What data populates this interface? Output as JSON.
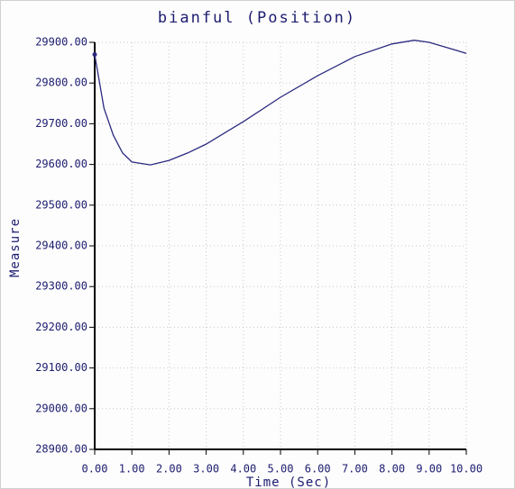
{
  "chart_data": {
    "type": "line",
    "title": "bianful (Position)",
    "x_label": "Time (Sec)",
    "y_label": "Measure",
    "x": [
      0,
      0.25,
      0.5,
      0.75,
      1,
      1.5,
      2,
      2.5,
      3,
      4,
      5,
      6,
      7,
      8,
      8.6,
      9,
      10
    ],
    "series": [
      {
        "name": "Position",
        "color": "#2a2a80",
        "values": [
          29870,
          29738,
          29672,
          29628,
          29606,
          29599,
          29610,
          29628,
          29650,
          29705,
          29765,
          29818,
          29865,
          29896,
          29905,
          29900,
          29873
        ]
      }
    ],
    "xlim": [
      0,
      10
    ],
    "xticks": [
      {
        "value": 0,
        "label": "0.00"
      },
      {
        "value": 1,
        "label": "1.00"
      },
      {
        "value": 2,
        "label": "2.00"
      },
      {
        "value": 3,
        "label": "3.00"
      },
      {
        "value": 4,
        "label": "4.00"
      },
      {
        "value": 5,
        "label": "5.00"
      },
      {
        "value": 6,
        "label": "6.00"
      },
      {
        "value": 7,
        "label": "7.00"
      },
      {
        "value": 8,
        "label": "8.00"
      },
      {
        "value": 9,
        "label": "9.00"
      },
      {
        "value": 10,
        "label": "10.00"
      }
    ],
    "ylim": [
      28900,
      29900
    ],
    "yticks": [
      {
        "value": 28900,
        "label": "28900.00"
      },
      {
        "value": 29000,
        "label": "29000.00"
      },
      {
        "value": 29100,
        "label": "29100.00"
      },
      {
        "value": 29200,
        "label": "29200.00"
      },
      {
        "value": 29300,
        "label": "29300.00"
      },
      {
        "value": 29400,
        "label": "29400.00"
      },
      {
        "value": 29500,
        "label": "29500.00"
      },
      {
        "value": 29600,
        "label": "29600.00"
      },
      {
        "value": 29700,
        "label": "29700.00"
      },
      {
        "value": 29800,
        "label": "29800.00"
      },
      {
        "value": 29900,
        "label": "29900.00"
      }
    ],
    "grid": true
  }
}
